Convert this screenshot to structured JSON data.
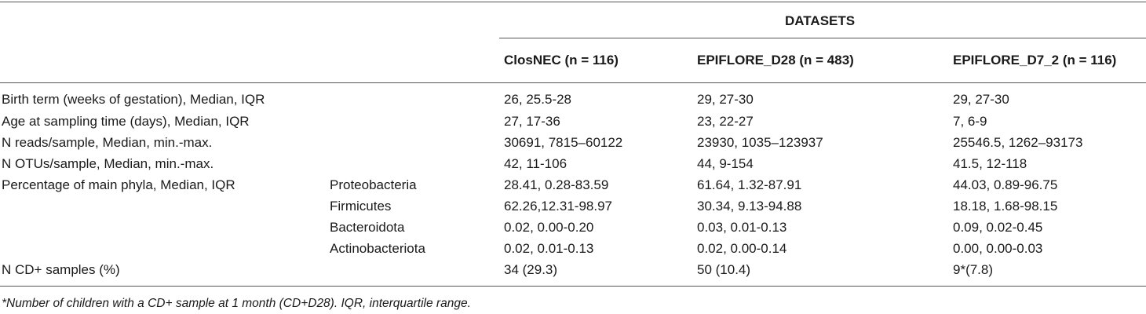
{
  "table": {
    "group_header": "DATASETS",
    "columns": [
      "ClosNEC (n = 116)",
      "EPIFLORE_D28 (n = 483)",
      "EPIFLORE_D7_2 (n = 116)"
    ],
    "rows": [
      {
        "label": "Birth term (weeks of gestation), Median, IQR",
        "sub": "",
        "values": [
          "26, 25.5-28",
          "29, 27-30",
          "29, 27-30"
        ]
      },
      {
        "label": "Age at sampling time (days), Median, IQR",
        "sub": "",
        "values": [
          "27, 17-36",
          "23, 22-27",
          "7, 6-9"
        ]
      },
      {
        "label": "N reads/sample, Median, min.-max.",
        "sub": "",
        "values": [
          "30691, 7815–60122",
          "23930, 1035–123937",
          "25546.5, 1262–93173"
        ]
      },
      {
        "label": "N OTUs/sample, Median, min.-max.",
        "sub": "",
        "values": [
          "42, 11-106",
          "44, 9-154",
          "41.5, 12-118"
        ]
      },
      {
        "label": "Percentage of main phyla, Median, IQR",
        "sub": "Proteobacteria",
        "values": [
          "28.41, 0.28-83.59",
          "61.64, 1.32-87.91",
          "44.03, 0.89-96.75"
        ]
      },
      {
        "label": "",
        "sub": "Firmicutes",
        "values": [
          "62.26,12.31-98.97",
          "30.34, 9.13-94.88",
          "18.18, 1.68-98.15"
        ]
      },
      {
        "label": "",
        "sub": "Bacteroidota",
        "values": [
          "0.02, 0.00-0.20",
          "0.03, 0.01-0.13",
          "0.09, 0.02-0.45"
        ]
      },
      {
        "label": "",
        "sub": "Actinobacteriota",
        "values": [
          "0.02, 0.01-0.13",
          "0.02, 0.00-0.14",
          "0.00, 0.00-0.03"
        ]
      },
      {
        "label": "N CD+ samples (%)",
        "sub": "",
        "values": [
          "34 (29.3)",
          "50 (10.4)",
          "9*(7.8)"
        ]
      }
    ],
    "footnote": "*Number of children with a CD+ sample at 1 month (CD+D28). IQR, interquartile range."
  }
}
